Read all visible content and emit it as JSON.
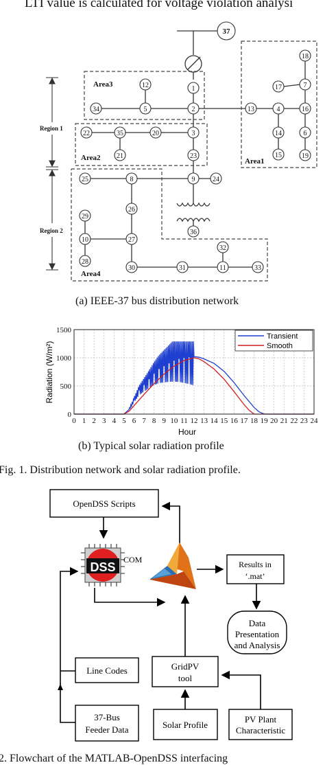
{
  "top_line": "LTI value is calculated for voltage violation analysi",
  "network": {
    "bus_37": "37",
    "areas": {
      "area3": "Area3",
      "area2": "Area2",
      "area1": "Area1",
      "area4": "Area4"
    },
    "regions": {
      "region1": "Region 1",
      "region2": "Region 2"
    },
    "buses": {
      "b1": "1",
      "b2": "2",
      "b3": "3",
      "b4": "4",
      "b5": "5",
      "b6": "6",
      "b7": "7",
      "b8": "8",
      "b9": "9",
      "b10": "10",
      "b11": "11",
      "b12": "12",
      "b13": "13",
      "b14": "14",
      "b15": "15",
      "b16": "16",
      "b17": "17",
      "b18": "18",
      "b19": "19",
      "b20": "20",
      "b21": "21",
      "b22": "22",
      "b23": "23",
      "b24": "24",
      "b25": "25",
      "b26": "26",
      "b27": "27",
      "b28": "28",
      "b29": "29",
      "b30": "30",
      "b31": "31",
      "b32": "32",
      "b33": "33",
      "b34": "34",
      "b35": "35",
      "b36": "36"
    },
    "caption": "(a) IEEE-37 bus distribution network"
  },
  "chart_data": {
    "type": "line",
    "ylabel": "Radiation (W/m²)",
    "xlabel": "Hour",
    "xlim": [
      0,
      24
    ],
    "ylim": [
      0,
      1500
    ],
    "xticks": [
      "0",
      "1",
      "2",
      "3",
      "4",
      "5",
      "6",
      "7",
      "8",
      "9",
      "10",
      "11",
      "12",
      "13",
      "14",
      "15",
      "16",
      "17",
      "18",
      "19",
      "20",
      "21",
      "22",
      "23",
      "24"
    ],
    "yticks": [
      "0",
      "500",
      "1000",
      "1500"
    ],
    "grid": true,
    "legend_position": "top-right",
    "series": [
      {
        "name": "Transient",
        "color": "#1f3fd0",
        "x": [
          0,
          5,
          5.5,
          6,
          6.5,
          7,
          7.5,
          8,
          8.5,
          9,
          9.5,
          10,
          10.5,
          11,
          11.5,
          12,
          12.5,
          13,
          14,
          15,
          16,
          17,
          18,
          18.5,
          19,
          24
        ],
        "y": [
          0,
          0,
          80,
          250,
          420,
          520,
          620,
          720,
          800,
          850,
          900,
          950,
          980,
          1000,
          1010,
          1020,
          1010,
          980,
          900,
          760,
          560,
          330,
          120,
          40,
          0,
          0
        ]
      },
      {
        "name": "Smooth",
        "color": "#d01f1f",
        "x": [
          0,
          5,
          5.5,
          6,
          7,
          8,
          9,
          10,
          11,
          12,
          12.5,
          13,
          14,
          15,
          16,
          17,
          17.5,
          18,
          24
        ],
        "y": [
          0,
          0,
          50,
          150,
          350,
          540,
          710,
          850,
          950,
          1000,
          980,
          930,
          800,
          620,
          400,
          170,
          70,
          0,
          0
        ]
      }
    ],
    "caption": "(b) Typical solar radiation profile"
  },
  "fig1_caption": "Fig. 1.   Distribution network and solar radiation profile.",
  "flowchart": {
    "opendss_scripts": "OpenDSS Scripts",
    "dss_logo": "DSS",
    "com_label": "COM",
    "results_line1": "Results in",
    "results_line2": "‘.mat’",
    "data_line1": "Data",
    "data_line2": "Presentation",
    "data_line3": "and Analysis",
    "line_codes": "Line Codes",
    "gridpv_line1": "GridPV",
    "gridpv_line2": "tool",
    "feeder_line1": "37-Bus",
    "feeder_line2": "Feeder Data",
    "solar_profile": "Solar Profile",
    "pv_line1": "PV Plant",
    "pv_line2": "Characteristic",
    "matlab_icon": "matlab-logo-icon"
  },
  "fig2_caption": "2.   Flowchart of the MATLAB-OpenDSS interfacing"
}
